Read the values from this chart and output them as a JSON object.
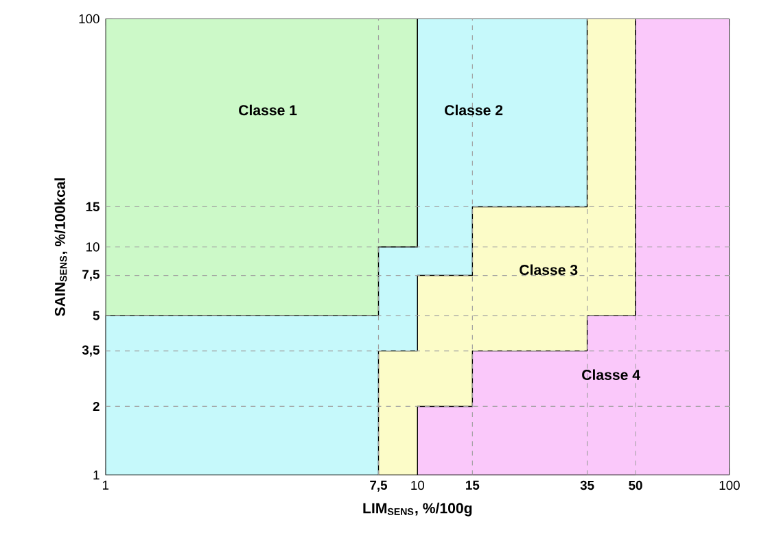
{
  "chart_data": {
    "type": "area",
    "xlabel": "LIM$_{SENS}$, %/100g",
    "ylabel": "SAIN$_{SENS}$, %/100kcal",
    "log": "xy",
    "xlim": [
      1,
      100
    ],
    "ylim": [
      1,
      100
    ],
    "xticks": [
      1,
      {
        "value": 7.5,
        "label": "**7,5**"
      },
      10,
      {
        "value": 15,
        "label": "**15**"
      },
      {
        "value": 35,
        "label": "**35**"
      },
      {
        "value": 50,
        "label": "**50**"
      },
      100
    ],
    "yticks": [
      1,
      {
        "value": 2,
        "label": "**2**"
      },
      {
        "value": 3.5,
        "label": "**3,5**"
      },
      {
        "value": 5,
        "label": "**5**"
      },
      {
        "value": 7.5,
        "label": "**7,5**"
      },
      10,
      {
        "value": 15,
        "label": "**15**"
      },
      100
    ],
    "series": [
      {
        "color": "#ccf9c8",
        "x": [
          1,
          10
        ],
        "values": [
          100,
          100
        ]
      },
      {
        "color": "#c6f9fb",
        "x": [
          1,
          7.5,
          7.5,
          10,
          10,
          35
        ],
        "values": [
          5,
          5,
          10,
          10,
          100,
          100
        ]
      },
      {
        "color": "#fcfcc8",
        "x": [
          7.5,
          10,
          10,
          15,
          15,
          35,
          35,
          50
        ],
        "values": [
          3.5,
          3.5,
          7.5,
          7.5,
          15,
          15,
          100,
          100
        ]
      },
      {
        "color": "#fac8fa",
        "x": [
          10,
          15,
          15,
          35,
          35,
          50,
          50,
          100
        ],
        "values": [
          2,
          2,
          3.5,
          3.5,
          5,
          5,
          100,
          100
        ]
      }
    ],
    "ref_lines": [
      {
        "axis": "x",
        "value": 7.5,
        "color": "#a0a0a0",
        "line_style": "dashed"
      },
      {
        "axis": "x",
        "value": 15,
        "color": "#a0a0a0",
        "line_style": "dashed"
      },
      {
        "axis": "x",
        "value": 35,
        "color": "#a0a0a0",
        "line_style": "dashed"
      },
      {
        "axis": "x",
        "value": 50,
        "color": "#a0a0a0",
        "line_style": "dashed"
      },
      {
        "axis": "y",
        "value": 2,
        "color": "#a0a0a0",
        "line_style": "dashed"
      },
      {
        "axis": "y",
        "value": 3.5,
        "color": "#a0a0a0",
        "line_style": "dashed"
      },
      {
        "axis": "y",
        "value": 5,
        "color": "#a0a0a0",
        "line_style": "dashed"
      },
      {
        "axis": "y",
        "value": 7.5,
        "color": "#a0a0a0",
        "line_style": "dashed"
      },
      {
        "axis": "y",
        "value": 10,
        "color": "#a0a0a0",
        "line_style": "dashed"
      },
      {
        "axis": "y",
        "value": 15,
        "color": "#a0a0a0",
        "line_style": "dashed"
      }
    ],
    "annotations": [
      "Classe 1",
      "Classe 2",
      "Classe 3",
      "Classe 4"
    ],
    "grid": false,
    "marker": "none"
  }
}
